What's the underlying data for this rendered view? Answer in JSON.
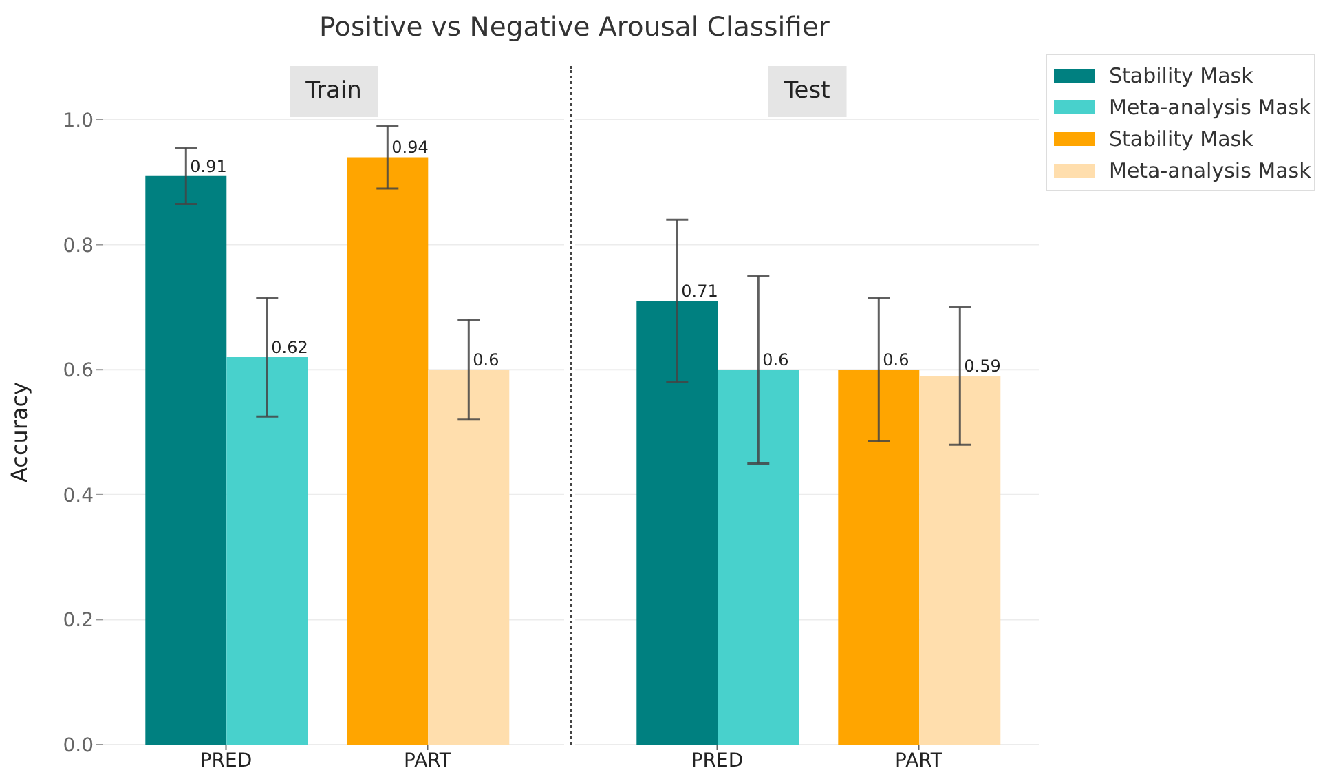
{
  "chart_data": [
    {
      "type": "bar",
      "title": "Positive vs Negative Arousal Classifier",
      "subtitle": "Train",
      "ylabel": "Accuracy",
      "categories": [
        "PRED",
        "PART"
      ],
      "series": [
        {
          "color": "#008080",
          "values": [
            0.91,
            null
          ],
          "errors": [
            0.045,
            null
          ]
        },
        {
          "color": "#48d1cc",
          "values": [
            0.62,
            null
          ],
          "errors": [
            0.095,
            null
          ]
        },
        {
          "color": "#ffa500",
          "values": [
            null,
            0.94
          ],
          "errors": [
            null,
            0.05
          ]
        },
        {
          "color": "#ffdead",
          "values": [
            null,
            0.6
          ],
          "errors": [
            null,
            0.08
          ]
        }
      ],
      "ylim": [
        0,
        1
      ],
      "yticks": [
        {
          "value": 0,
          "label": "0.0"
        },
        0.2,
        0.4,
        0.6,
        0.8,
        {
          "value": 1,
          "label": "1.0"
        }
      ],
      "grid": "y",
      "data_labels": true
    },
    {
      "type": "bar",
      "subtitle": "Test",
      "categories": [
        "PRED",
        "PART"
      ],
      "series": [
        {
          "name": "Stability Mask",
          "color": "#008080",
          "values": [
            0.71,
            null
          ],
          "errors": [
            0.13,
            null
          ]
        },
        {
          "name": "Meta-analysis Mask",
          "color": "#48d1cc",
          "values": [
            0.6,
            null
          ],
          "errors": [
            0.15,
            null
          ]
        },
        {
          "name": "Stability Mask",
          "color": "#ffa500",
          "values": [
            null,
            0.6
          ],
          "errors": [
            null,
            0.115
          ]
        },
        {
          "name": "Meta-analysis Mask",
          "color": "#ffdead",
          "values": [
            null,
            0.59
          ],
          "errors": [
            null,
            0.11
          ]
        }
      ],
      "ylim": [
        0,
        1
      ],
      "yticks": [
        0,
        0.2,
        0.4,
        0.6,
        0.8,
        1
      ],
      "grid": "y",
      "data_labels": true,
      "tick_labels": "x",
      "legend": "top right"
    }
  ]
}
